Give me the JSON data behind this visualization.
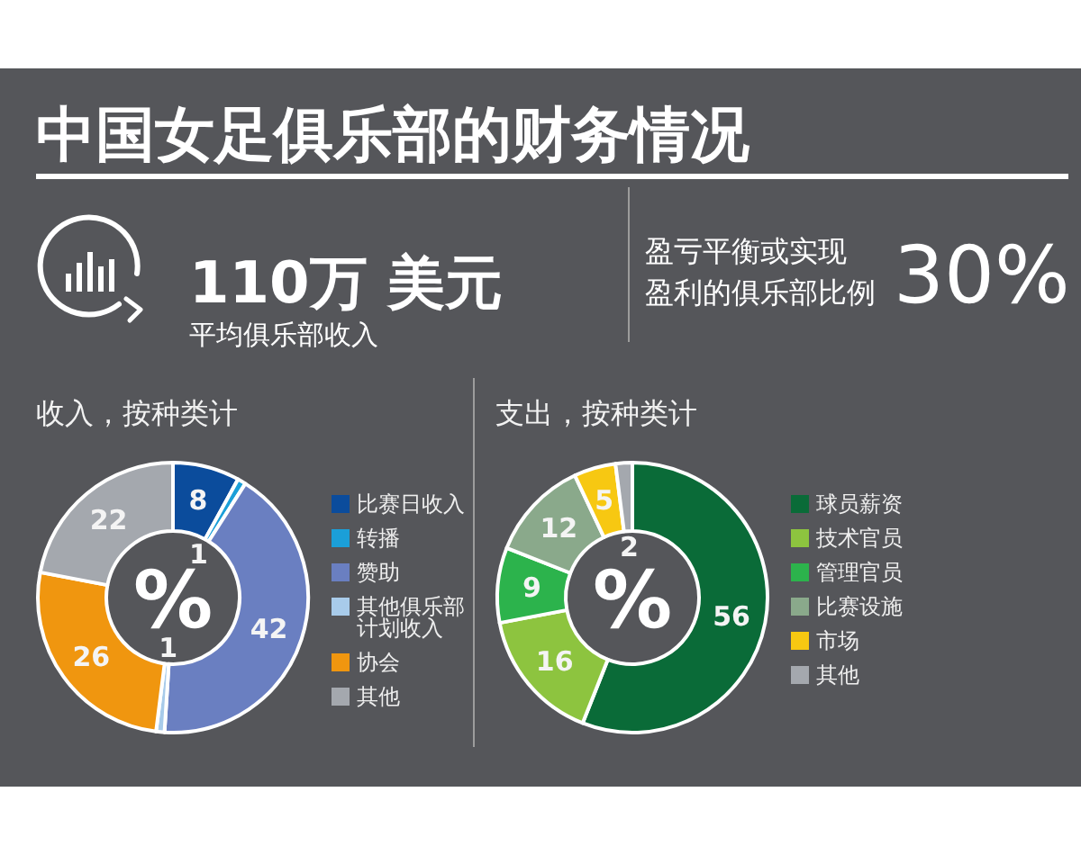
{
  "chart_data": [
    {
      "type": "other",
      "title": "中国女足俱乐部的财务情况",
      "annotations": [
        "110万 美元",
        "平均俱乐部收入",
        "盈亏平衡或实现",
        "盈利的俱乐部比例",
        "30%"
      ]
    },
    {
      "type": "donut",
      "title": "收入，按种类计",
      "categories": [
        "比赛日收入",
        "转播",
        "赞助",
        "其他俱乐部计划收入",
        "协会",
        "其他"
      ],
      "values": [
        8,
        1,
        42,
        1,
        26,
        22
      ],
      "colors": [
        "#0b4c9c",
        "#1b9fd8",
        "#6a7fc1",
        "#a8cbea",
        "#f0960f",
        "#a4a8ae"
      ],
      "data_labels": true,
      "legend": "right",
      "annotations": [
        "%"
      ]
    },
    {
      "type": "donut",
      "title": "支出，按种类计",
      "categories": [
        "球员薪资",
        "技术官员",
        "管理官员",
        "比赛设施",
        "市场",
        "其他"
      ],
      "values": [
        56,
        16,
        9,
        12,
        5,
        2
      ],
      "colors": [
        "#0a6b38",
        "#8dc43f",
        "#2cb34c",
        "#8aa98b",
        "#f7c812",
        "#a4a8ae"
      ],
      "data_labels": true,
      "legend": "right",
      "annotations": [
        "%"
      ]
    }
  ]
}
